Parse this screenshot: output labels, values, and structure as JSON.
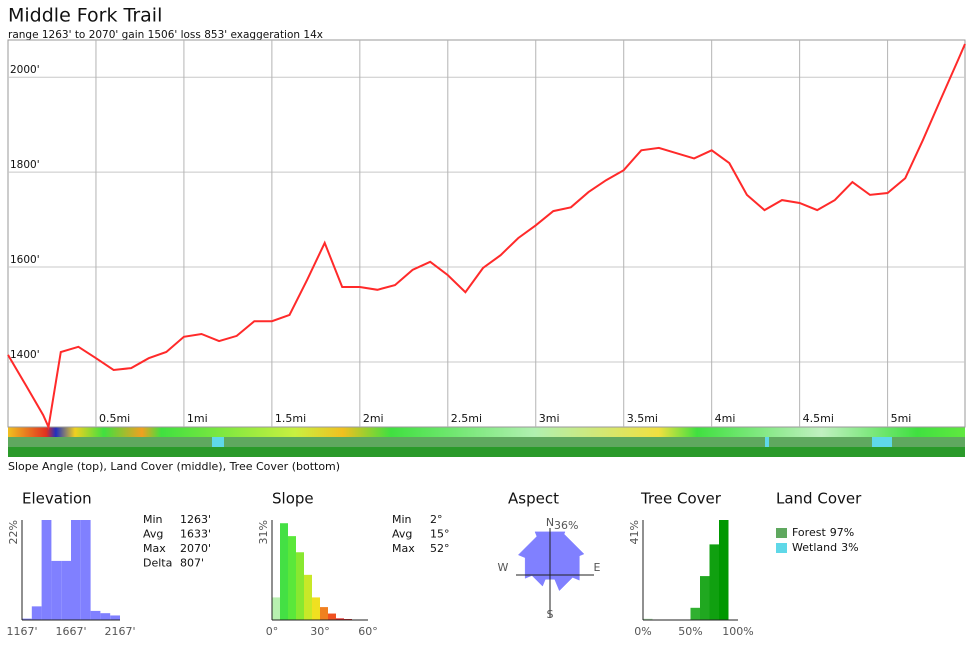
{
  "title": "Middle Fork Trail",
  "subtitle": "range 1263' to 2070'  gain 1506'  loss 853'  exaggeration 14x",
  "strip_caption": "Slope Angle (top), Land Cover (middle), Tree Cover (bottom)",
  "chart_data": [
    {
      "type": "line",
      "color": "#ff2a2a",
      "grid": true,
      "x": [
        0,
        0.1,
        0.2,
        0.23,
        0.3,
        0.4,
        0.5,
        0.6,
        0.7,
        0.8,
        0.9,
        1.0,
        1.1,
        1.2,
        1.3,
        1.4,
        1.5,
        1.6,
        1.7,
        1.8,
        1.9,
        2.0,
        2.1,
        2.2,
        2.3,
        2.4,
        2.5,
        2.6,
        2.7,
        2.8,
        2.9,
        3.0,
        3.1,
        3.2,
        3.3,
        3.4,
        3.5,
        3.6,
        3.7,
        3.8,
        3.9,
        4.0,
        4.1,
        4.2,
        4.3,
        4.4,
        4.5,
        4.6,
        4.7,
        4.8,
        4.9,
        5.0,
        5.1,
        5.2,
        5.3,
        5.4,
        5.44
      ],
      "values": [
        1415,
        1352,
        1288,
        1263,
        1421,
        1432,
        1408,
        1383,
        1387,
        1408,
        1421,
        1453,
        1459,
        1444,
        1455,
        1486,
        1486,
        1499,
        1573,
        1651,
        1558,
        1558,
        1552,
        1562,
        1594,
        1611,
        1583,
        1547,
        1598,
        1625,
        1661,
        1688,
        1718,
        1726,
        1758,
        1783,
        1804,
        1846,
        1851,
        1840,
        1829,
        1846,
        1819,
        1752,
        1720,
        1741,
        1735,
        1720,
        1741,
        1779,
        1752,
        1756,
        1787,
        1867,
        1952,
        2036,
        2070
      ],
      "xlim": [
        0,
        5.44
      ],
      "ylim": [
        1263,
        2070
      ],
      "xticks": [
        {
          "value": 0.5,
          "label": "0.5mi"
        },
        {
          "value": 1,
          "label": "1mi"
        },
        {
          "value": 1.5,
          "label": "1.5mi"
        },
        {
          "value": 2,
          "label": "2mi"
        },
        {
          "value": 2.5,
          "label": "2.5mi"
        },
        {
          "value": 3,
          "label": "3mi"
        },
        {
          "value": 3.5,
          "label": "3.5mi"
        },
        {
          "value": 4,
          "label": "4mi"
        },
        {
          "value": 4.5,
          "label": "4.5mi"
        },
        {
          "value": 5,
          "label": "5mi"
        }
      ],
      "yticks": [
        {
          "value": 1400,
          "label": "1400'"
        },
        {
          "value": 1600,
          "label": "1600'"
        },
        {
          "value": 1800,
          "label": "1800'"
        },
        {
          "value": 2000,
          "label": "2000'"
        }
      ]
    },
    {
      "type": "histogram",
      "title": "Elevation",
      "color": "#8080ff",
      "bins": [
        1167,
        1267,
        1367,
        1467,
        1567,
        1667,
        1767,
        1867,
        1967,
        2067,
        2167
      ],
      "values": [
        0.3,
        3,
        22,
        13,
        13,
        22,
        22,
        2,
        1.5,
        1
      ],
      "xlim": [
        1167,
        2167
      ],
      "ylim": [
        0,
        22
      ],
      "xticks": [
        {
          "value": 1167,
          "label": "1167'"
        },
        {
          "value": 1667,
          "label": "1667'"
        },
        {
          "value": 2167,
          "label": "2167'"
        }
      ],
      "yticks": [
        {
          "value": 22,
          "label": "22%"
        }
      ],
      "stats": [
        {
          "label": "Min",
          "value": "1263'"
        },
        {
          "label": "Avg",
          "value": "1633'"
        },
        {
          "label": "Max",
          "value": "2070'"
        },
        {
          "label": "Delta",
          "value": "807'"
        }
      ]
    },
    {
      "type": "histogram",
      "title": "Slope",
      "colors": [
        "#b8f0b0",
        "#44e044",
        "#5ae83a",
        "#88e830",
        "#c8e828",
        "#f0e020",
        "#f08020",
        "#f05020",
        "#e02020",
        "#c01818"
      ],
      "bins": [
        0,
        5,
        10,
        15,
        20,
        25,
        30,
        35,
        40,
        45,
        50
      ],
      "values": [
        7,
        30,
        26,
        21,
        14,
        7,
        4,
        2,
        0.5,
        0.3
      ],
      "xlim": [
        0,
        60
      ],
      "ylim": [
        0,
        31
      ],
      "xticks": [
        {
          "value": 0,
          "label": "0°"
        },
        {
          "value": 30,
          "label": "30°"
        },
        {
          "value": 60,
          "label": "60°"
        }
      ],
      "yticks": [
        {
          "value": 31,
          "label": "31%"
        }
      ],
      "stats": [
        {
          "label": "Min",
          "value": "2°"
        },
        {
          "label": "Avg",
          "value": "15°"
        },
        {
          "label": "Max",
          "value": "52°"
        }
      ]
    },
    {
      "type": "rose",
      "title": "Aspect",
      "color": "#8080ff",
      "categories": [
        "N",
        null,
        "E",
        null,
        "S",
        null,
        "W",
        null
      ],
      "values": [
        32,
        30,
        26,
        20,
        10,
        16,
        22,
        28
      ],
      "rlim": [
        0,
        36
      ],
      "rticks": [
        {
          "value": 36,
          "label": "36%"
        }
      ]
    },
    {
      "type": "histogram",
      "title": "Tree Cover",
      "colors": [
        "#b0e0b0",
        "#a0d8a0",
        "#90d090",
        "#80c880",
        "#60c060",
        "#30b030",
        "#20a820",
        "#10a010",
        "#009800",
        "#008800"
      ],
      "bins": [
        0,
        10,
        20,
        30,
        40,
        50,
        60,
        70,
        80,
        90,
        100
      ],
      "values": [
        0.5,
        0,
        0,
        0,
        0,
        5,
        18,
        31,
        41,
        0
      ],
      "xlim": [
        0,
        100
      ],
      "ylim": [
        0,
        41
      ],
      "xticks": [
        {
          "value": 0,
          "label": "0%"
        },
        {
          "value": 50,
          "label": "50%"
        },
        {
          "value": 100,
          "label": "100%"
        }
      ],
      "yticks": [
        {
          "value": 41,
          "label": "41%"
        }
      ]
    },
    {
      "type": "legend",
      "title": "Land Cover",
      "categories": [
        "Forest",
        "Wetland"
      ],
      "values": [
        97,
        3
      ],
      "value_labels": [
        "97%",
        "3%"
      ],
      "colors": [
        "#5fa85f",
        "#5fd8e8"
      ]
    }
  ]
}
